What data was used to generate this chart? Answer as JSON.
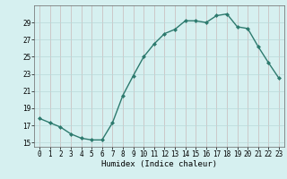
{
  "x": [
    0,
    1,
    2,
    3,
    4,
    5,
    6,
    7,
    8,
    9,
    10,
    11,
    12,
    13,
    14,
    15,
    16,
    17,
    18,
    19,
    20,
    21,
    22,
    23
  ],
  "y": [
    17.8,
    17.3,
    16.8,
    16.0,
    15.5,
    15.3,
    15.3,
    17.3,
    20.5,
    22.8,
    25.0,
    26.5,
    27.7,
    28.2,
    29.2,
    29.2,
    29.0,
    29.8,
    30.0,
    28.5,
    28.3,
    26.2,
    24.3,
    22.5
  ],
  "line_color": "#2d7a6e",
  "bg_color": "#d6f0f0",
  "grid_color": "#b8d8d8",
  "vgrid_color": "#c8b8b8",
  "xlabel": "Humidex (Indice chaleur)",
  "ylim": [
    14.5,
    31.0
  ],
  "xlim": [
    -0.5,
    23.5
  ],
  "yticks": [
    15,
    17,
    19,
    21,
    23,
    25,
    27,
    29
  ],
  "xticks": [
    0,
    1,
    2,
    3,
    4,
    5,
    6,
    7,
    8,
    9,
    10,
    11,
    12,
    13,
    14,
    15,
    16,
    17,
    18,
    19,
    20,
    21,
    22,
    23
  ]
}
